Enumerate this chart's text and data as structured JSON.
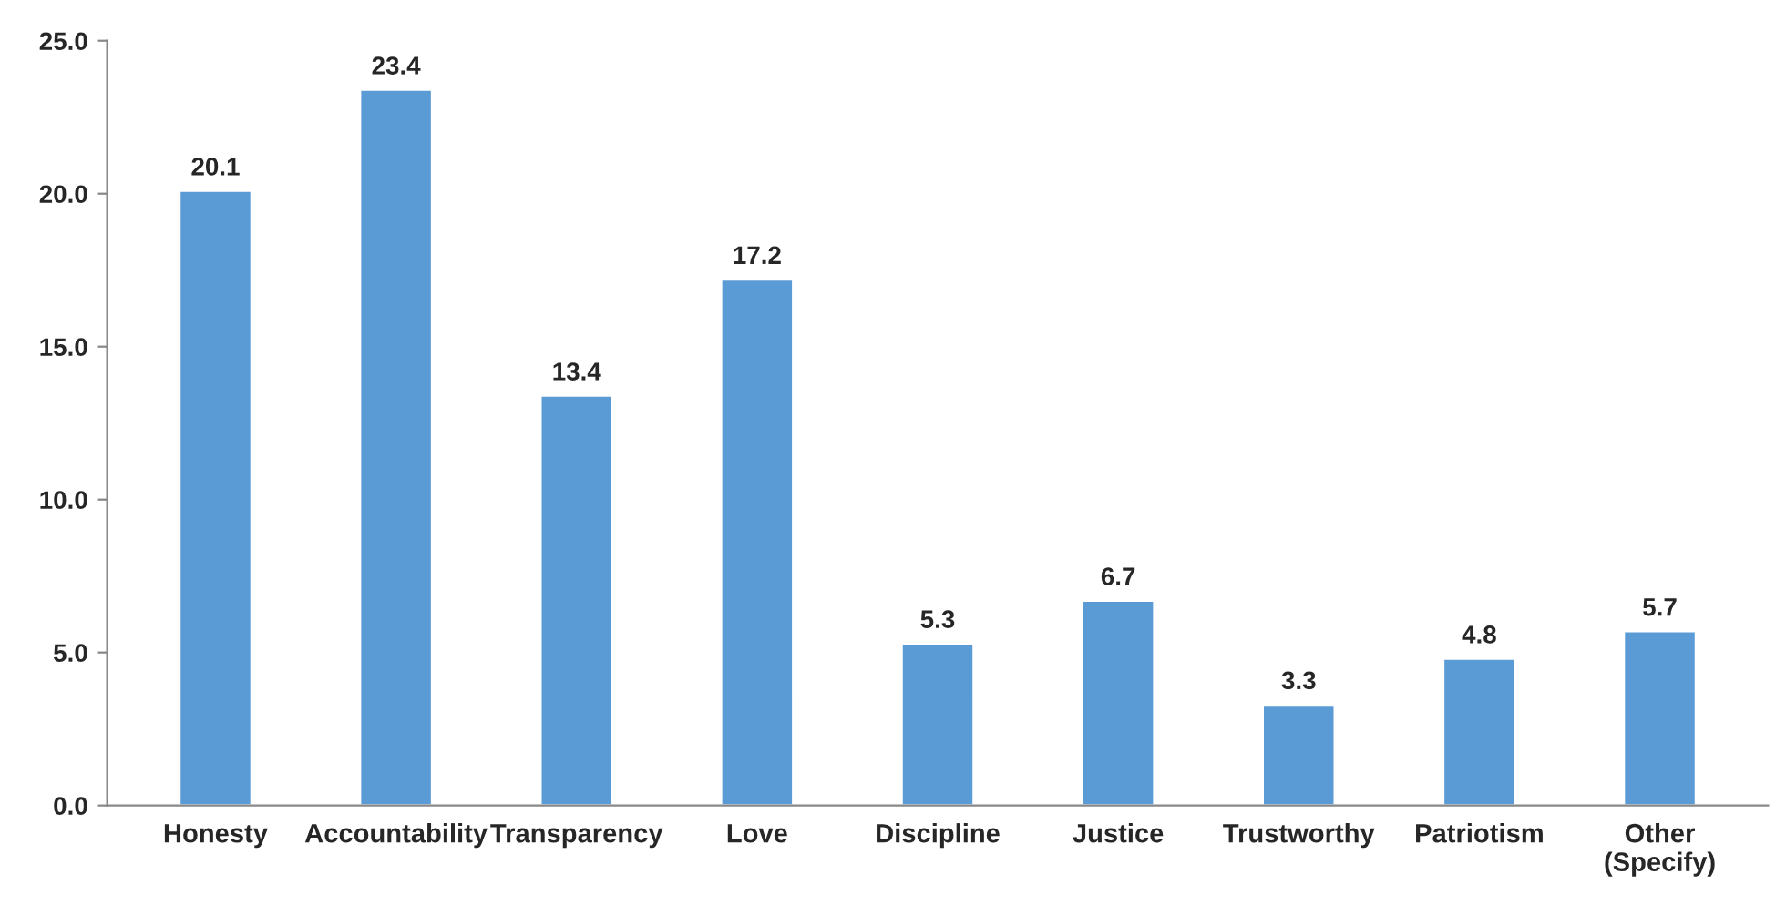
{
  "chart_data": {
    "type": "bar",
    "categories": [
      "Honesty",
      "Accountability",
      "Transparency",
      "Love",
      "Discipline",
      "Justice",
      "Trustworthy",
      "Patriotism",
      "Other\n(Specify)"
    ],
    "values": [
      20.1,
      23.4,
      13.4,
      17.2,
      5.3,
      6.7,
      3.3,
      4.8,
      5.7
    ],
    "color": "#5b9bd5",
    "ylim": [
      0,
      25
    ],
    "yticks": [
      {
        "value": 0,
        "label": "0.0"
      },
      {
        "value": 5,
        "label": "5.0"
      },
      {
        "value": 10,
        "label": "10.0"
      },
      {
        "value": 15,
        "label": "15.0"
      },
      {
        "value": 20,
        "label": "20.0"
      },
      {
        "value": 25,
        "label": "25.0"
      }
    ],
    "data_labels": true,
    "grid": false,
    "legend": false
  }
}
